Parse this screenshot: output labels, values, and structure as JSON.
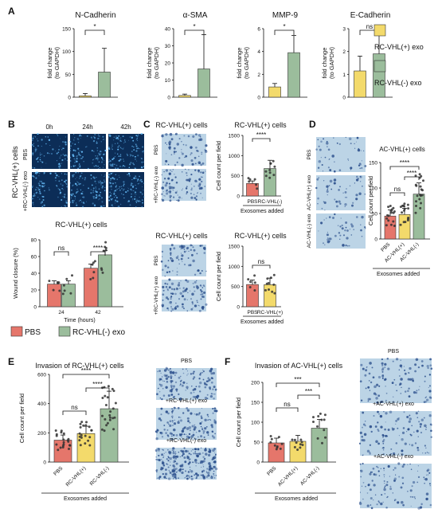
{
  "colors": {
    "pbs": "#e5766b",
    "pos": "#f3da6b",
    "neg": "#9bbd9c",
    "micro_bg": "#bcd4e6",
    "micro_cell": "#2b4f8c",
    "wound_bg": "#0c2d57",
    "wound_cell": "#6ac2ff"
  },
  "panel_letters": {
    "a": "A",
    "b": "B",
    "c": "C",
    "d": "D",
    "e": "E",
    "f": "F"
  },
  "panel_a": {
    "legend": [
      "RC-VHL(+) exo",
      "RC-VHL(-) exo"
    ],
    "ylabel": [
      "fold change",
      "(to GAPDH)"
    ],
    "charts": [
      {
        "title": "N-Cadherin",
        "yticks": [
          "0",
          "50",
          "100",
          "150"
        ],
        "ymax": 150,
        "values": [
          3,
          55
        ],
        "err": [
          5,
          52
        ],
        "sig": "*"
      },
      {
        "title": "α-SMA",
        "yticks": [
          "0",
          "10",
          "20",
          "30",
          "40"
        ],
        "ymax": 40,
        "values": [
          1,
          16.5
        ],
        "err": [
          0.8,
          20
        ],
        "sig": "*"
      },
      {
        "title": "MMP-9",
        "yticks": [
          "0",
          "2",
          "4",
          "6"
        ],
        "ymax": 6,
        "values": [
          0.9,
          3.9
        ],
        "err": [
          0.3,
          1.5
        ],
        "sig": "*"
      },
      {
        "title": "E-Cadherin",
        "yticks": [
          "0",
          "1",
          "2",
          "3"
        ],
        "ymax": 3,
        "values": [
          1.15,
          1.9
        ],
        "err": [
          0.65,
          0.8
        ],
        "sig": "ns"
      }
    ]
  },
  "panel_b": {
    "time_labels": [
      "0h",
      "24h",
      "42h"
    ],
    "row_group": "RC-VHL(+) cells",
    "rows": [
      "PBS",
      "+RC-VHL(-) exo"
    ],
    "chart": {
      "title": "RC-VHL(+) cells",
      "ylabel": "Wound closure (%)",
      "xlabel": "Time (hours)",
      "categories": [
        "24",
        "42"
      ],
      "yticks": [
        "0",
        "20",
        "40",
        "60",
        "80"
      ],
      "ymax": 80,
      "series": [
        {
          "name": "PBS",
          "values": [
            27,
            46
          ]
        },
        {
          "name": "RC-VHL(-) exo",
          "values": [
            27,
            62
          ]
        }
      ],
      "sig": [
        "ns",
        "****"
      ]
    }
  },
  "panel_c": {
    "top": {
      "micro_title": "RC-VHL(+) cells",
      "micro_labels": [
        "PBS",
        "+RC-VHL(-) exo"
      ],
      "chart_title": "RC-VHL(+) cells",
      "ylabel": "Cell count per field",
      "yticks": [
        "0",
        "500",
        "1000",
        "1500"
      ],
      "ymax": 1500,
      "categories": [
        "PBS",
        "RC-VHL(-)"
      ],
      "values": [
        310,
        680
      ],
      "sig": "****",
      "xlabel": "Exosomes added"
    },
    "bottom": {
      "micro_title": "RC-VHL(+) cells",
      "micro_labels": [
        "PBS",
        "+RC-VHL(+) exo"
      ],
      "chart_title": "RC-VHL(+) cells",
      "ylabel": "Cell count per field",
      "yticks": [
        "0",
        "500",
        "1000",
        "1500"
      ],
      "ymax": 1500,
      "categories": [
        "PBS",
        "RC-VHL(+)"
      ],
      "values": [
        550,
        545
      ],
      "sig": "ns",
      "xlabel": "Exosomes added"
    }
  },
  "panel_d": {
    "micro_labels": [
      "PBS",
      "AC-VHL(+) exo",
      "AC-VHL(-) exo"
    ],
    "chart_title": "AC-VHL(+) cells",
    "ylabel": "Cell count per field",
    "yticks": [
      "0",
      "50",
      "100",
      "150"
    ],
    "ymax": 150,
    "categories": [
      "PBS",
      "AC-VHL(+)",
      "AC-VHL(-)"
    ],
    "values": [
      45,
      48,
      88
    ],
    "sig": [
      "ns",
      "****",
      "****"
    ],
    "xlabel": "Exosomes added"
  },
  "panel_e": {
    "title": "Invasion of RC-VHL(+) cells",
    "ylabel": "Cell count per field",
    "yticks": [
      "0",
      "200",
      "400",
      "600"
    ],
    "ymax": 600,
    "categories": [
      "PBS",
      "RC-VHL(+)",
      "RC-VHL(-)"
    ],
    "values": [
      150,
      195,
      365
    ],
    "sig": [
      "ns",
      "****",
      "****"
    ],
    "xlabel": "Exosomes added",
    "micro_labels": [
      "PBS",
      "+RC-VHL(+) exo",
      "+RC-VHL(-) exo"
    ]
  },
  "panel_f": {
    "title": "Invasion of AC-VHL(+) cells",
    "ylabel": "Cell count per field",
    "yticks": [
      "0",
      "50",
      "100",
      "150",
      "200"
    ],
    "ymax": 200,
    "categories": [
      "PBS",
      "AC-VHL(+)",
      "AC-VHL(-)"
    ],
    "values": [
      48,
      52,
      85
    ],
    "sig": [
      "ns",
      "***",
      "***"
    ],
    "xlabel": "Exosomes added",
    "micro_labels": [
      "PBS",
      "+AC-VHL(+) exo",
      "+AC-VHL(-) exo"
    ]
  }
}
